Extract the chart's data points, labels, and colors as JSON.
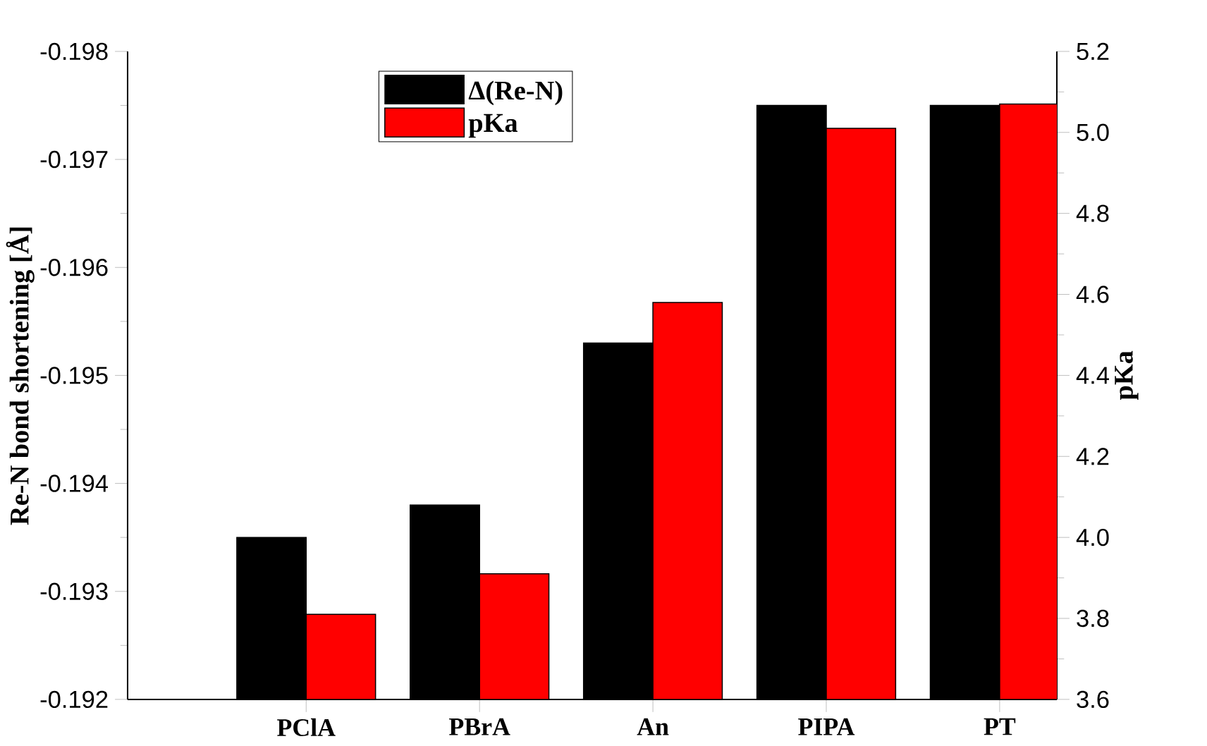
{
  "chart_data": {
    "type": "bar",
    "ylabel": "Re-N bond shortening [Å]",
    "y2label": "pKa",
    "categories": [
      "PClA",
      "PBrA",
      "An",
      "PIPA",
      "PT"
    ],
    "series": [
      {
        "name": "Δ(Re-N)",
        "color": "#000000",
        "values": [
          -0.1935,
          -0.1938,
          -0.1953,
          -0.1975,
          -0.1975
        ]
      },
      {
        "name": "pKa",
        "color": "#ff0000",
        "axis": "y2",
        "values": [
          3.81,
          3.91,
          4.58,
          5.01,
          5.07
        ]
      }
    ],
    "ylim": [
      -0.192,
      -0.198
    ],
    "yticks": [
      -0.192,
      {
        "value": -0.1925,
        "label": null
      },
      -0.193,
      {
        "value": -0.1935,
        "label": null
      },
      -0.194,
      {
        "value": -0.1945,
        "label": null
      },
      -0.195,
      {
        "value": -0.1955,
        "label": null
      },
      -0.196,
      {
        "value": -0.1965,
        "label": null
      },
      -0.197,
      {
        "value": -0.1975,
        "label": null
      },
      -0.198
    ],
    "y2lim": [
      3.6,
      5.2
    ],
    "y2ticks": [
      3.6,
      {
        "value": 3.7,
        "label": null
      },
      3.8,
      {
        "value": 3.9,
        "label": null
      },
      {
        "value": 4.0,
        "label": "4.0"
      },
      {
        "value": 4.1,
        "label": null
      },
      4.2,
      {
        "value": 4.3,
        "label": null
      },
      4.4,
      {
        "value": 4.5,
        "label": null
      },
      4.6,
      {
        "value": 4.7,
        "label": null
      },
      4.8,
      {
        "value": 4.9,
        "label": null
      },
      {
        "value": 5.0,
        "label": "5.0"
      },
      {
        "value": 5.1,
        "label": null
      },
      5.2
    ],
    "legend": "top left",
    "grid": false
  }
}
